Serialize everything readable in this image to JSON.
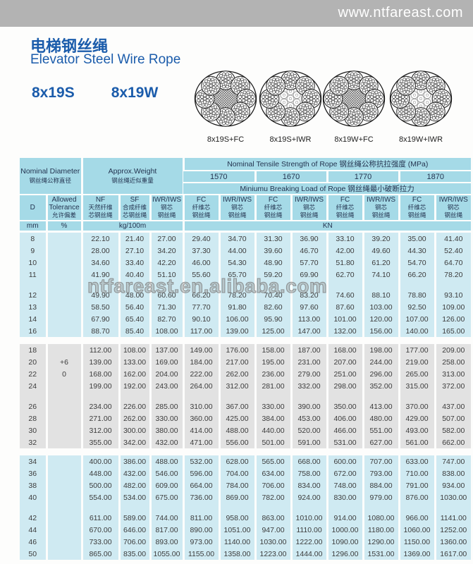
{
  "banner": {
    "url": "www.ntfareast.com"
  },
  "title": {
    "zh": "电梯钢丝绳",
    "en": "Elevator Steel Wire Rope"
  },
  "rope_types": [
    "8x19S",
    "8x19W"
  ],
  "diagrams": [
    {
      "label": "8x19S+FC",
      "core": "fc"
    },
    {
      "label": "8x19S+IWR",
      "core": "iwr"
    },
    {
      "label": "8x19W+FC",
      "core": "fc"
    },
    {
      "label": "8x19W+IWR",
      "core": "iwr"
    }
  ],
  "watermark": "ntfareast.en.alibaba.com",
  "colors": {
    "accent_blue": "#1b5cab",
    "banner_gray": "#b3b3b3",
    "header_cyan": "#a5dae7",
    "cell_cyan": "#cfeaf2",
    "cell_gray": "#e2e2e2"
  },
  "table": {
    "header": {
      "nominal_diameter": {
        "en": "Nominal Diameter",
        "zh": "钢丝绳公称直径"
      },
      "approx_weight": {
        "en": "Approx.Weight",
        "zh": "钢丝绳近似重量"
      },
      "tensile_strength_label": "Nominal Tensile Strength of Rope  钢丝绳公称抗拉强度 (MPa)",
      "strength_grades": [
        "1570",
        "1670",
        "1770",
        "1870"
      ],
      "breaking_load_label": "Miniumu Breaking Load of Rope  钢丝绳最小破断拉力",
      "d_label": "D",
      "tolerance": {
        "l1": "Allowed",
        "l2": "Tolerance",
        "l3": "允许偏差"
      },
      "nf": {
        "l1": "NF",
        "l2": "天然纤维",
        "l3": "芯钢丝绳"
      },
      "sf": {
        "l1": "SF",
        "l2": "合成纤维",
        "l3": "芯钢丝绳"
      },
      "iws": {
        "l1": "IWR/IWS",
        "l2": "钢芯",
        "l3": "钢丝绳"
      },
      "fc": {
        "l1": "FC",
        "l2": "纤维芯",
        "l3": "钢丝绳"
      },
      "units": {
        "mm": "mm",
        "pct": "%",
        "kg": "kg/100m",
        "kn": "KN"
      }
    },
    "sections": [
      {
        "bg": "cyan",
        "groups": [
          [
            {
              "d": "8",
              "v": [
                "22.10",
                "21.40",
                "27.00",
                "29.40",
                "34.70",
                "31.30",
                "36.90",
                "33.10",
                "39.20",
                "35.00",
                "41.40"
              ]
            },
            {
              "d": "9",
              "v": [
                "28.00",
                "27.10",
                "34.20",
                "37.30",
                "44.00",
                "39.60",
                "46.70",
                "42.00",
                "49.60",
                "44.30",
                "52.40"
              ]
            },
            {
              "d": "10",
              "v": [
                "34.60",
                "33.40",
                "42.20",
                "46.00",
                "54.30",
                "48.90",
                "57.70",
                "51.80",
                "61.20",
                "54.70",
                "64.70"
              ]
            },
            {
              "d": "11",
              "v": [
                "41.90",
                "40.40",
                "51.10",
                "55.60",
                "65.70",
                "59.20",
                "69.90",
                "62.70",
                "74.10",
                "66.20",
                "78.20"
              ]
            }
          ],
          [
            {
              "d": "12",
              "v": [
                "49.90",
                "48.00",
                "60.60",
                "66.20",
                "78.20",
                "70.40",
                "83.20",
                "74.60",
                "88.10",
                "78.80",
                "93.10"
              ]
            },
            {
              "d": "13",
              "v": [
                "58.50",
                "56.40",
                "71.30",
                "77.70",
                "91.80",
                "82.60",
                "97.60",
                "87.60",
                "103.00",
                "92.50",
                "109.00"
              ]
            },
            {
              "d": "14",
              "v": [
                "67.90",
                "65.40",
                "82.70",
                "90.10",
                "106.00",
                "95.90",
                "113.00",
                "101.00",
                "120.00",
                "107.00",
                "126.00"
              ]
            },
            {
              "d": "16",
              "v": [
                "88.70",
                "85.40",
                "108.00",
                "117.00",
                "139.00",
                "125.00",
                "147.00",
                "132.00",
                "156.00",
                "140.00",
                "165.00"
              ]
            }
          ]
        ]
      },
      {
        "bg": "gray",
        "groups": [
          [
            {
              "d": "18",
              "v": [
                "112.00",
                "108.00",
                "137.00",
                "149.00",
                "176.00",
                "158.00",
                "187.00",
                "168.00",
                "198.00",
                "177.00",
                "209.00"
              ]
            },
            {
              "d": "20",
              "tol": "+6",
              "v": [
                "139.00",
                "133.00",
                "169.00",
                "184.00",
                "217.00",
                "195.00",
                "231.00",
                "207.00",
                "244.00",
                "219.00",
                "258.00"
              ]
            },
            {
              "d": "22",
              "tol": "0",
              "v": [
                "168.00",
                "162.00",
                "204.00",
                "222.00",
                "262.00",
                "236.00",
                "279.00",
                "251.00",
                "296.00",
                "265.00",
                "313.00"
              ]
            },
            {
              "d": "24",
              "v": [
                "199.00",
                "192.00",
                "243.00",
                "264.00",
                "312.00",
                "281.00",
                "332.00",
                "298.00",
                "352.00",
                "315.00",
                "372.00"
              ]
            }
          ],
          [
            {
              "d": "26",
              "v": [
                "234.00",
                "226.00",
                "285.00",
                "310.00",
                "367.00",
                "330.00",
                "390.00",
                "350.00",
                "413.00",
                "370.00",
                "437.00"
              ]
            },
            {
              "d": "28",
              "v": [
                "271.00",
                "262.00",
                "330.00",
                "360.00",
                "425.00",
                "384.00",
                "453.00",
                "406.00",
                "480.00",
                "429.00",
                "507.00"
              ]
            },
            {
              "d": "30",
              "v": [
                "312.00",
                "300.00",
                "380.00",
                "414.00",
                "488.00",
                "440.00",
                "520.00",
                "466.00",
                "551.00",
                "493.00",
                "582.00"
              ]
            },
            {
              "d": "32",
              "v": [
                "355.00",
                "342.00",
                "432.00",
                "471.00",
                "556.00",
                "501.00",
                "591.00",
                "531.00",
                "627.00",
                "561.00",
                "662.00"
              ]
            }
          ]
        ]
      },
      {
        "bg": "cyan",
        "groups": [
          [
            {
              "d": "34",
              "v": [
                "400.00",
                "386.00",
                "488.00",
                "532.00",
                "628.00",
                "565.00",
                "668.00",
                "600.00",
                "707.00",
                "633.00",
                "747.00"
              ]
            },
            {
              "d": "36",
              "v": [
                "448.00",
                "432.00",
                "546.00",
                "596.00",
                "704.00",
                "634.00",
                "758.00",
                "672.00",
                "793.00",
                "710.00",
                "838.00"
              ]
            },
            {
              "d": "38",
              "v": [
                "500.00",
                "482.00",
                "609.00",
                "664.00",
                "784.00",
                "706.00",
                "834.00",
                "748.00",
                "884.00",
                "791.00",
                "934.00"
              ]
            },
            {
              "d": "40",
              "v": [
                "554.00",
                "534.00",
                "675.00",
                "736.00",
                "869.00",
                "782.00",
                "924.00",
                "830.00",
                "979.00",
                "876.00",
                "1030.00"
              ]
            }
          ],
          [
            {
              "d": "42",
              "v": [
                "611.00",
                "589.00",
                "744.00",
                "811.00",
                "958.00",
                "863.00",
                "1010.00",
                "914.00",
                "1080.00",
                "966.00",
                "1141.00"
              ]
            },
            {
              "d": "44",
              "v": [
                "670.00",
                "646.00",
                "817.00",
                "890.00",
                "1051.00",
                "947.00",
                "1110.00",
                "1000.00",
                "1180.00",
                "1060.00",
                "1252.00"
              ]
            },
            {
              "d": "46",
              "v": [
                "733.00",
                "706.00",
                "893.00",
                "973.00",
                "1140.00",
                "1030.00",
                "1222.00",
                "1090.00",
                "1290.00",
                "1150.00",
                "1360.00"
              ]
            },
            {
              "d": "50",
              "v": [
                "865.00",
                "835.00",
                "1055.00",
                "1155.00",
                "1358.00",
                "1223.00",
                "1444.00",
                "1296.00",
                "1531.00",
                "1369.00",
                "1617.00"
              ]
            }
          ]
        ]
      }
    ]
  }
}
